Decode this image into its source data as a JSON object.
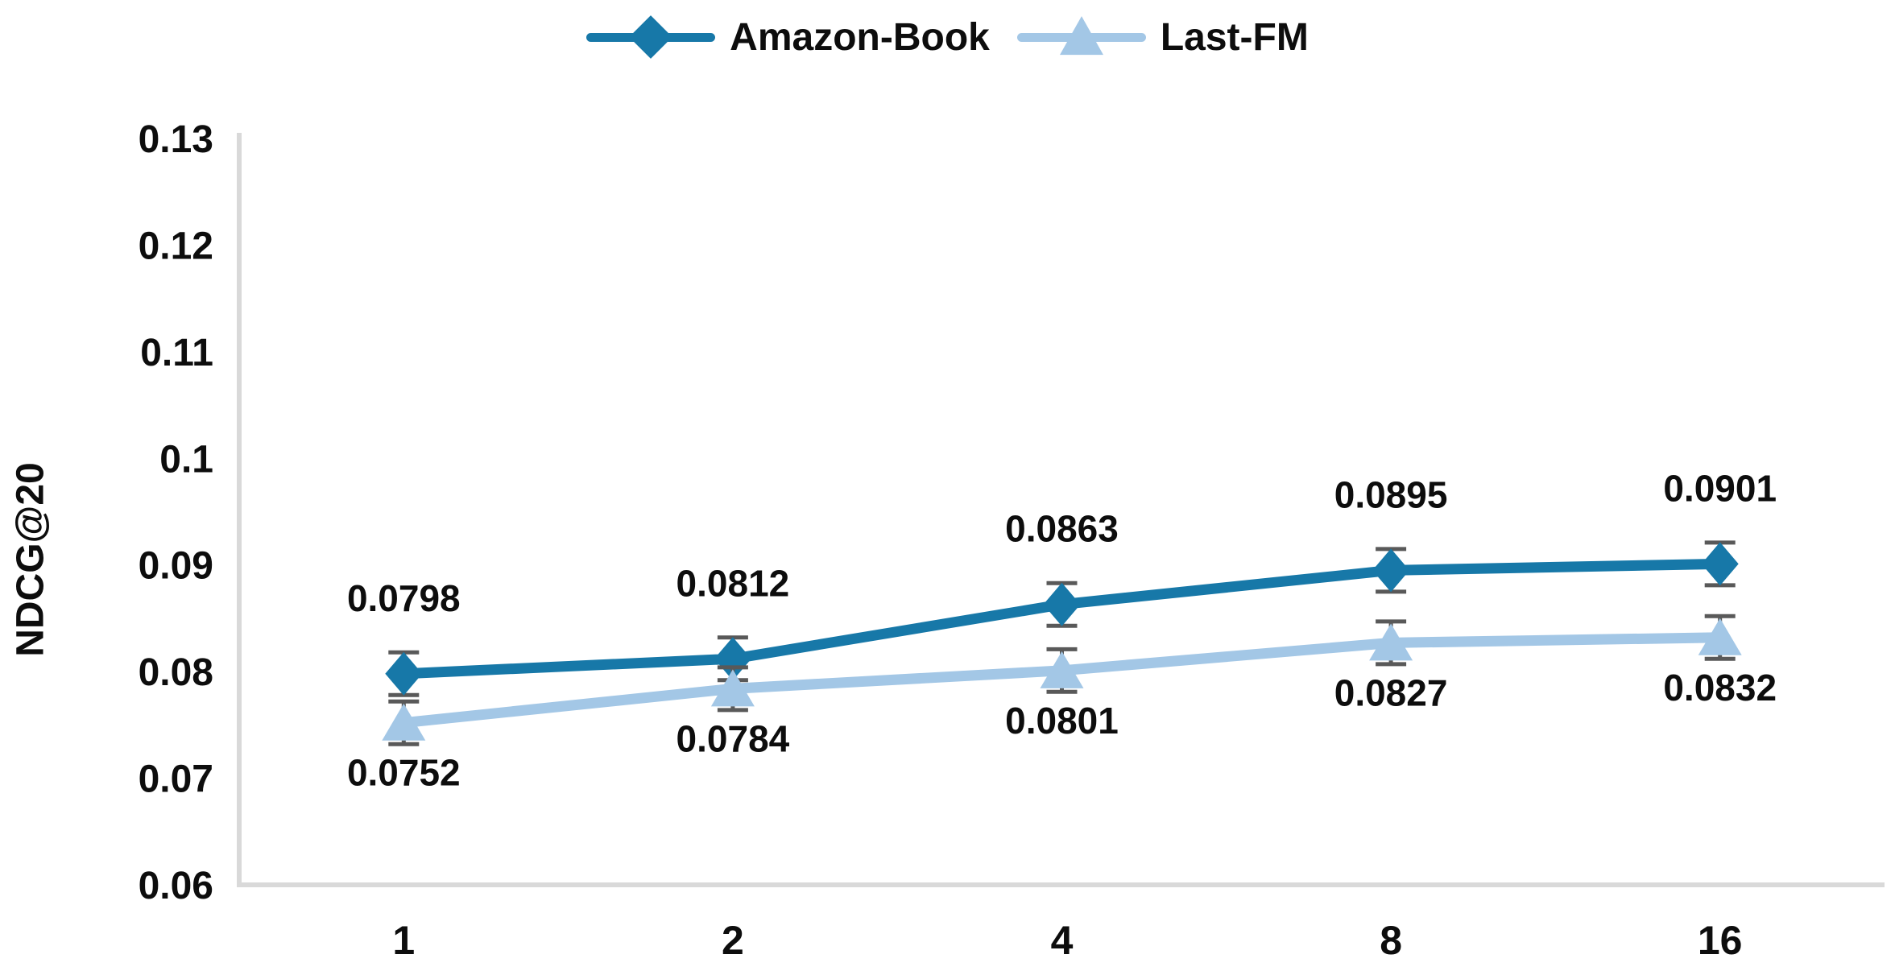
{
  "chart_data": {
    "type": "line",
    "categories": [
      "1",
      "2",
      "4",
      "8",
      "16"
    ],
    "series": [
      {
        "name": "Amazon-Book",
        "values": [
          0.0798,
          0.0812,
          0.0863,
          0.0895,
          0.0901
        ],
        "point_labels": [
          "0.0798",
          "0.0812",
          "0.0863",
          "0.0895",
          "0.0901"
        ],
        "color": "#1778a8",
        "marker": "diamond",
        "error": 0.002,
        "label_side": "above"
      },
      {
        "name": "Last-FM",
        "values": [
          0.0752,
          0.0784,
          0.0801,
          0.0827,
          0.0832
        ],
        "point_labels": [
          "0.0752",
          "0.0784",
          "0.0801",
          "0.0827",
          "0.0832"
        ],
        "color": "#a3c7e6",
        "marker": "triangle",
        "error": 0.002,
        "label_side": "below"
      }
    ],
    "title": "",
    "xlabel": "",
    "ylabel": "NDCG@20",
    "ylim": [
      0.06,
      0.13
    ],
    "ytick_step": 0.01,
    "ytick_labels": [
      "0.06",
      "0.07",
      "0.08",
      "0.09",
      "0.1",
      "0.11",
      "0.12",
      "0.13"
    ],
    "grid": false,
    "legend_position": "top-center",
    "colors": {
      "axis": "#d9d9d9",
      "error_bar": "#595959",
      "text": "#0d0d0d"
    }
  }
}
